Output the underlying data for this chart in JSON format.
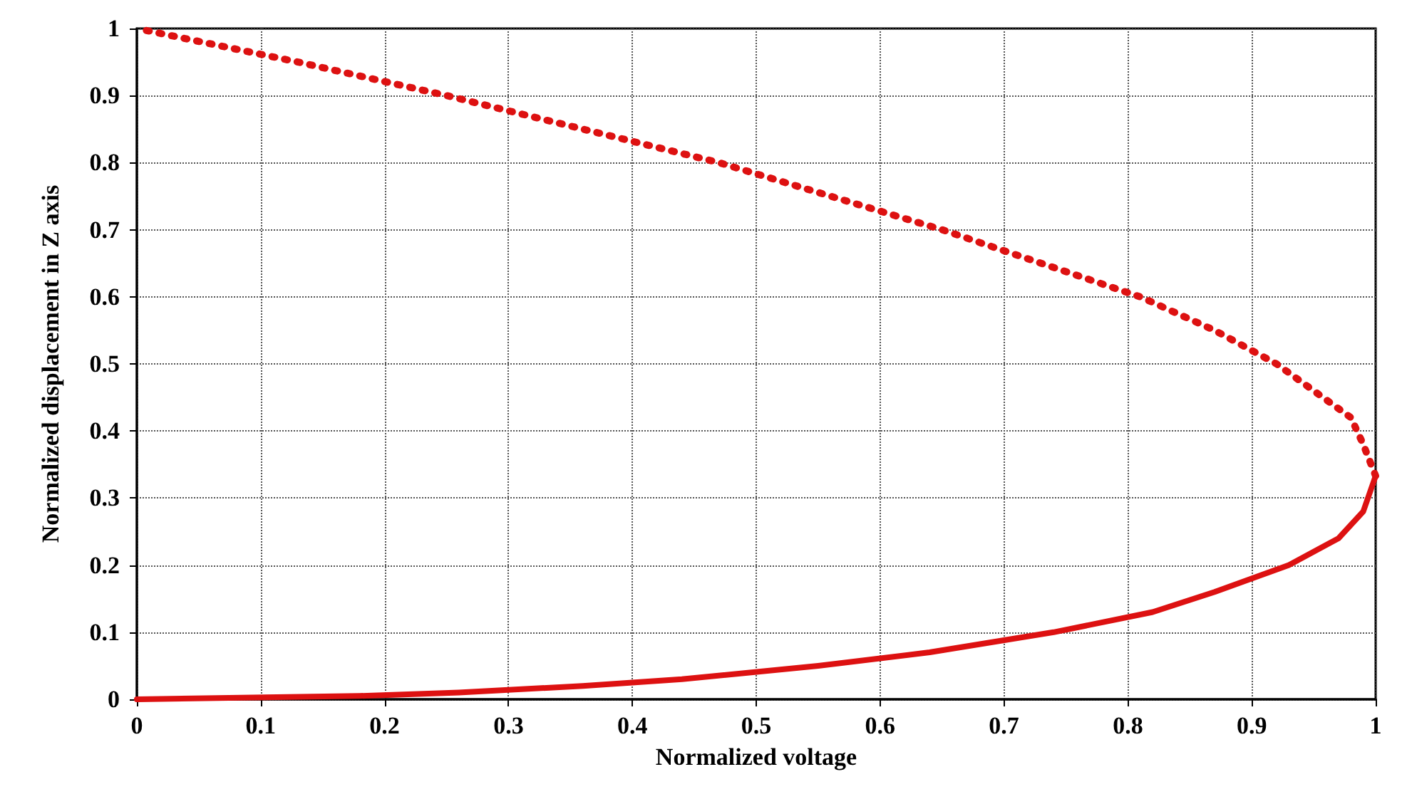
{
  "chart_data": {
    "type": "line",
    "xlabel": "Normalized voltage",
    "ylabel": "Normalized displacement in Z axis",
    "xlim": [
      0,
      1
    ],
    "ylim": [
      0,
      1
    ],
    "xticks": [
      0,
      0.1,
      0.2,
      0.3,
      0.4,
      0.5,
      0.6,
      0.7,
      0.8,
      0.9,
      1
    ],
    "yticks": [
      0,
      0.1,
      0.2,
      0.3,
      0.4,
      0.5,
      0.6,
      0.7,
      0.8,
      0.9,
      1
    ],
    "grid": true,
    "marker": "none",
    "series": [
      {
        "color": "#dd1111",
        "line_style": "solid",
        "x": [
          0,
          0.18,
          0.26,
          0.36,
          0.44,
          0.55,
          0.64,
          0.74,
          0.82,
          0.87,
          0.93,
          0.97,
          0.99,
          1.0
        ],
        "values": [
          0,
          0.005,
          0.01,
          0.02,
          0.03,
          0.05,
          0.07,
          0.1,
          0.13,
          0.16,
          0.2,
          0.24,
          0.28,
          0.333
        ]
      },
      {
        "color": "#dd1111",
        "line_style": "dotted",
        "x": [
          1.0,
          0.99,
          0.98,
          0.95,
          0.92,
          0.87,
          0.81,
          0.73,
          0.65,
          0.56,
          0.47,
          0.36,
          0.25,
          0.13,
          0
        ],
        "values": [
          0.333,
          0.38,
          0.42,
          0.46,
          0.5,
          0.55,
          0.6,
          0.65,
          0.7,
          0.75,
          0.8,
          0.85,
          0.9,
          0.95,
          1.0
        ]
      }
    ]
  }
}
